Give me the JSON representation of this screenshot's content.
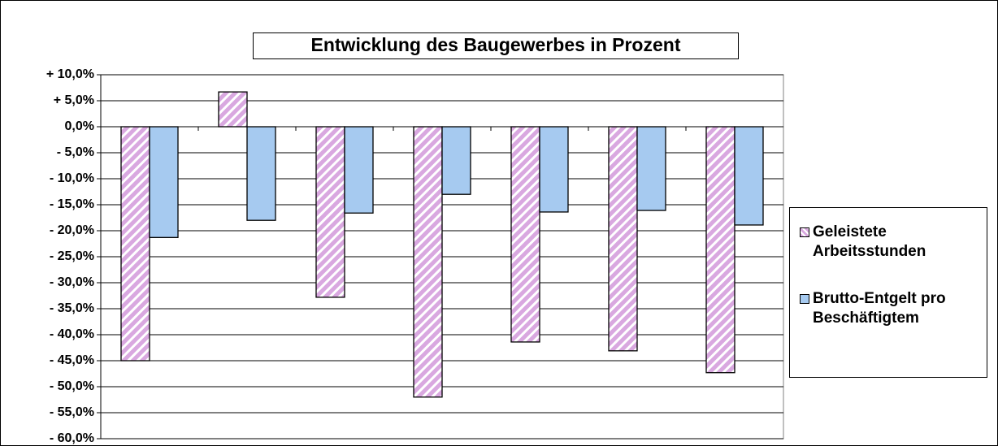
{
  "chart_data": {
    "type": "bar",
    "title": "Entwicklung des Baugewerbes in Prozent",
    "categories": [
      null,
      null,
      null,
      null,
      null,
      null,
      null
    ],
    "series": [
      {
        "name": "Geleistete Arbeitsstunden",
        "color": "#d9a8e0",
        "pattern": "diagonal-stripes",
        "values": [
          -45,
          6.7,
          -32.8,
          -52,
          -41.4,
          -43.1,
          -47.3
        ]
      },
      {
        "name": "Brutto-Entgelt pro Beschäftigtem",
        "color": "#a6caf0",
        "values": [
          -21.3,
          -18,
          -16.6,
          -13,
          -16.4,
          -16.1,
          -18.9
        ]
      }
    ],
    "ylim": [
      -60,
      10
    ],
    "yticks": [
      {
        "value": 10,
        "label": "+ 10,0%"
      },
      {
        "value": 5,
        "label": "+ 5,0%"
      },
      {
        "value": 0,
        "label": "0,0%"
      },
      {
        "value": -5,
        "label": "- 5,0%"
      },
      {
        "value": -10,
        "label": "- 10,0%"
      },
      {
        "value": -15,
        "label": "- 15,0%"
      },
      {
        "value": -20,
        "label": "- 20,0%"
      },
      {
        "value": -25,
        "label": "- 25,0%"
      },
      {
        "value": -30,
        "label": "- 30,0%"
      },
      {
        "value": -35,
        "label": "- 35,0%"
      },
      {
        "value": -40,
        "label": "- 40,0%"
      },
      {
        "value": -45,
        "label": "- 45,0%"
      },
      {
        "value": -50,
        "label": "- 50,0%"
      },
      {
        "value": -55,
        "label": "- 55,0%"
      },
      {
        "value": -60,
        "label": "- 60,0%"
      }
    ],
    "grid": true,
    "legend": "right"
  }
}
